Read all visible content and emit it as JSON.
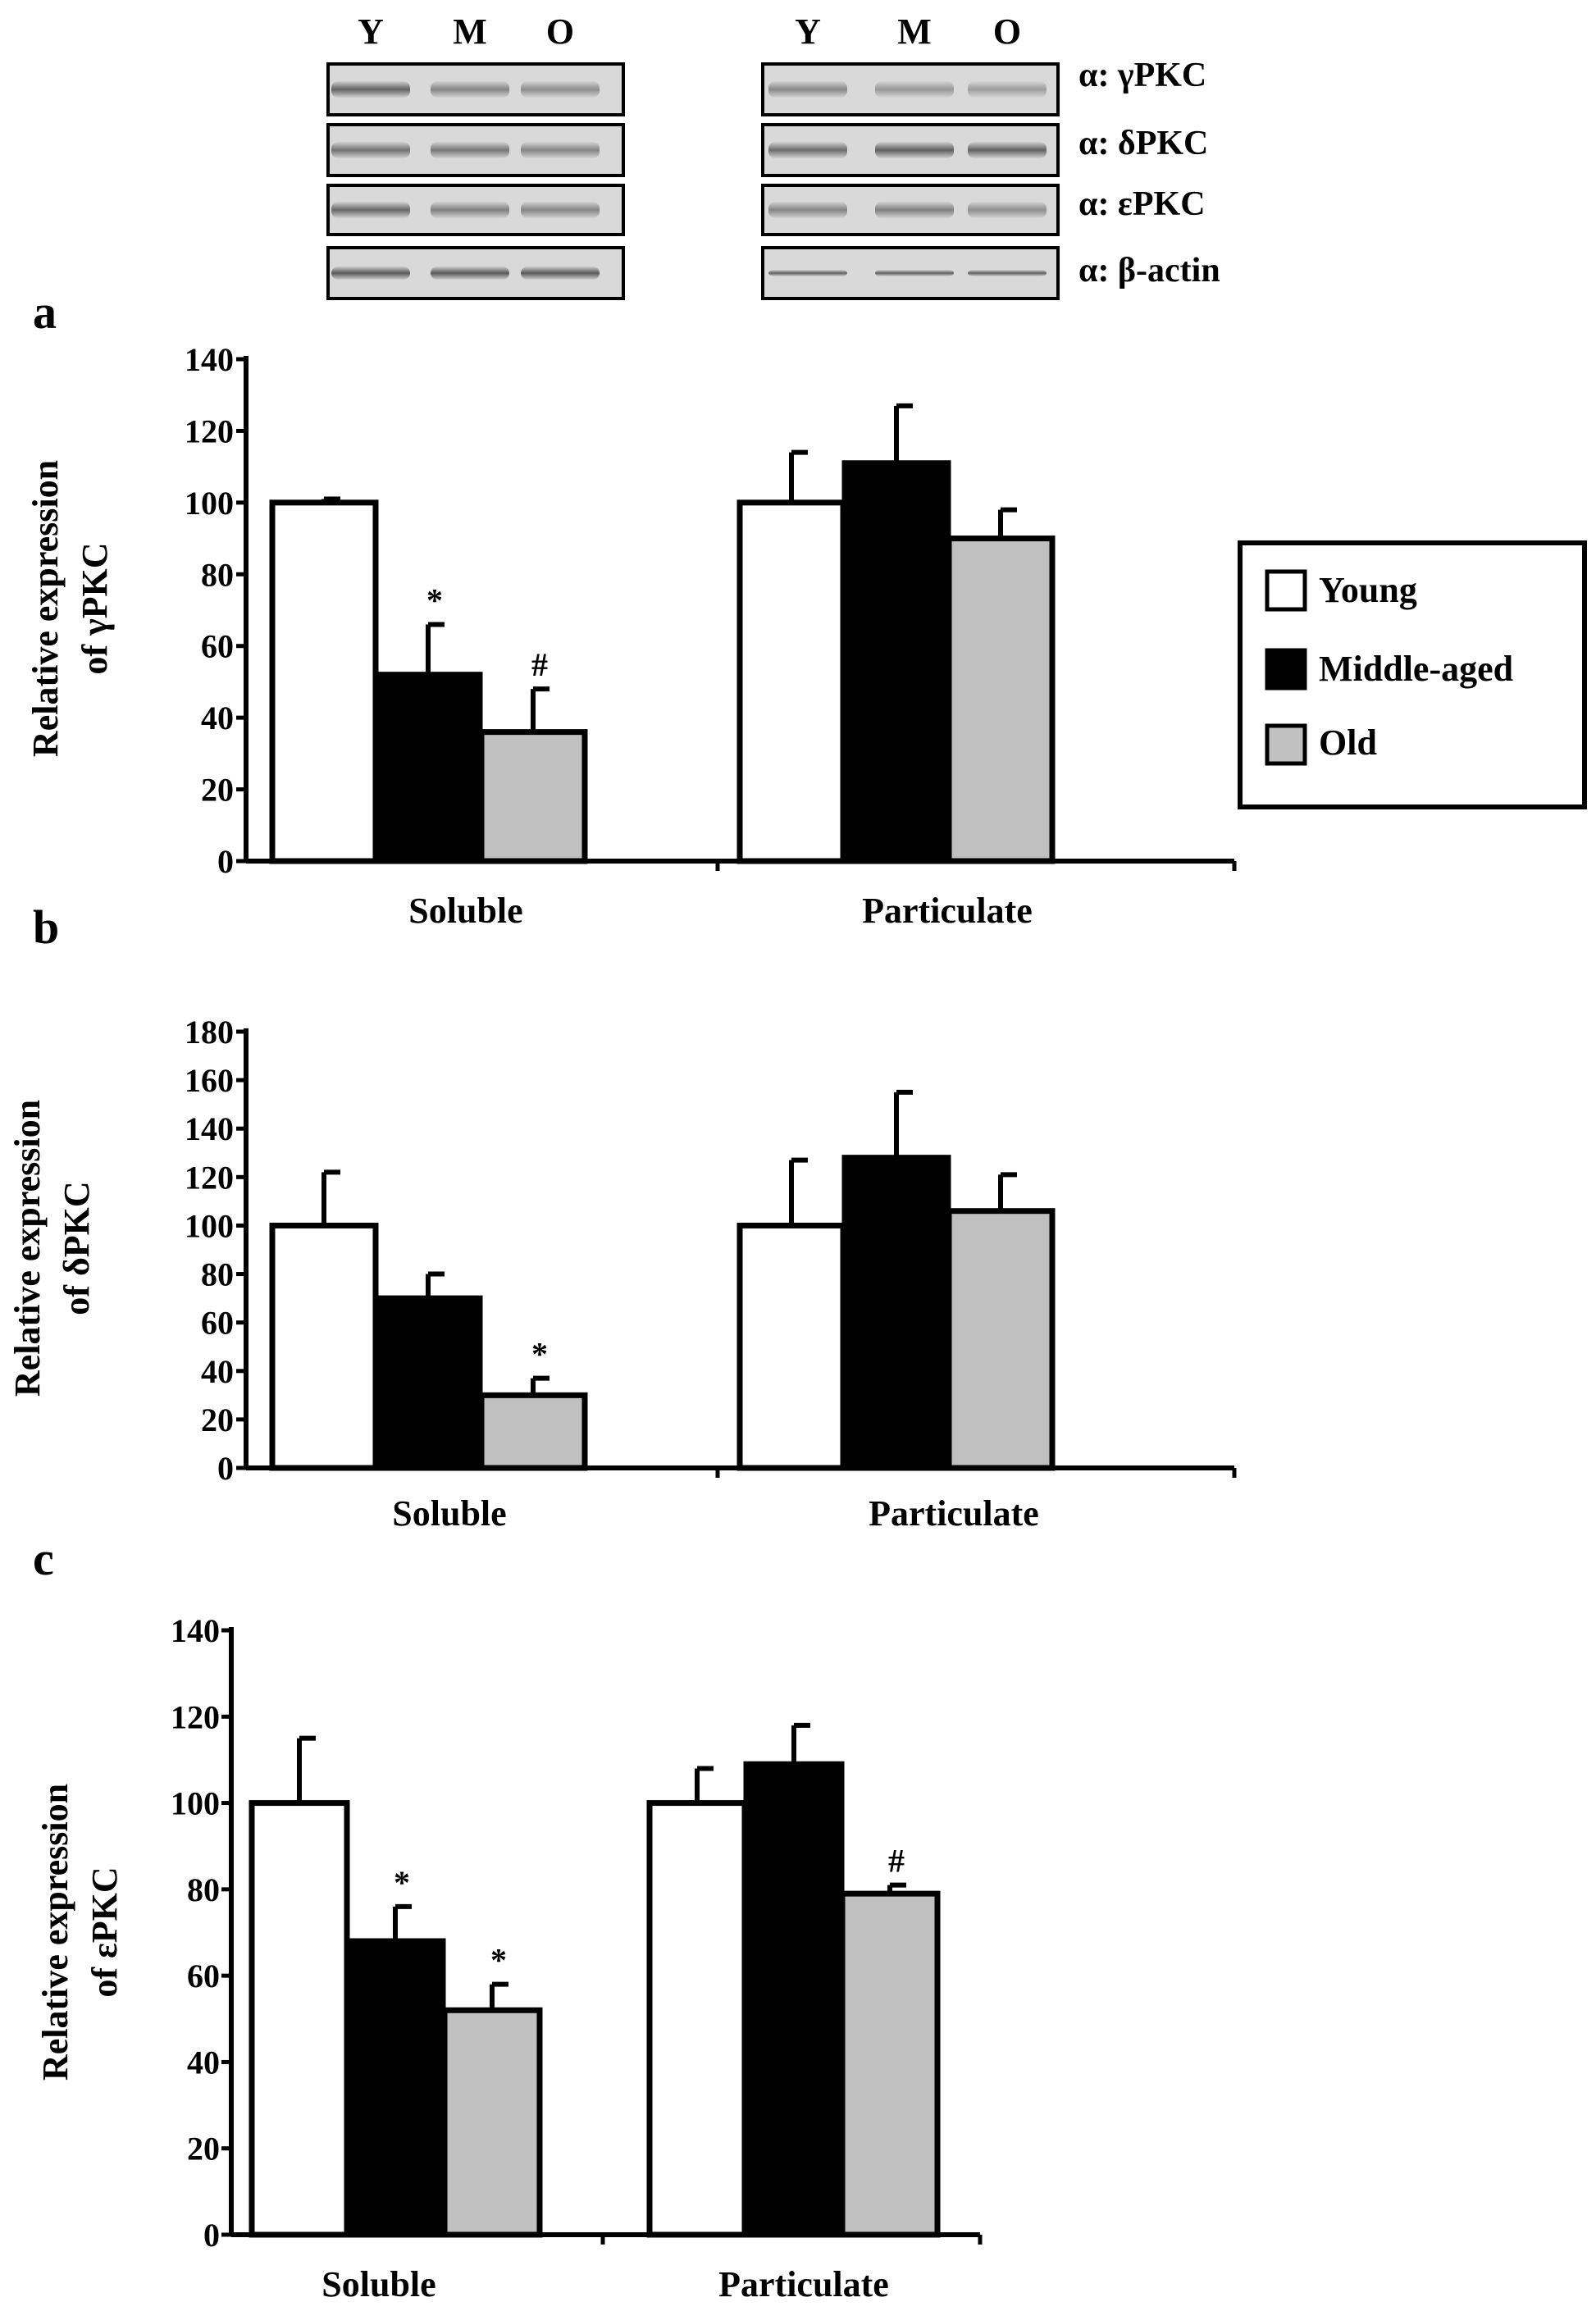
{
  "figure": {
    "blot": {
      "lane_labels": [
        "Y",
        "M",
        "O"
      ],
      "antibodies": [
        "α: γPKC",
        "α: δPKC",
        "α: εPKC",
        "α: β-actin"
      ]
    },
    "legend": {
      "entries": [
        "Young",
        "Middle-aged",
        "Old"
      ],
      "colors": [
        "#ffffff",
        "#000000",
        "#c0c0c0"
      ]
    },
    "colors": {
      "axis": "#000000",
      "young": "#ffffff",
      "middle": "#000000",
      "old": "#c0c0c0"
    }
  },
  "chart_data": [
    {
      "panel": "a",
      "type": "bar",
      "ylabel": [
        "Relative expression",
        "of γPKC"
      ],
      "categories": [
        "Soluble",
        "Particulate"
      ],
      "ylim": [
        0,
        140
      ],
      "yticks": [
        0,
        20,
        40,
        60,
        80,
        100,
        120,
        140
      ],
      "series": [
        {
          "name": "Young",
          "values": [
            100,
            100
          ],
          "errors": [
            1,
            14
          ],
          "annotations": [
            "",
            ""
          ]
        },
        {
          "name": "Middle-aged",
          "values": [
            52,
            111
          ],
          "errors": [
            14,
            16
          ],
          "annotations": [
            "*",
            ""
          ]
        },
        {
          "name": "Old",
          "values": [
            36,
            90
          ],
          "errors": [
            12,
            8
          ],
          "annotations": [
            "#",
            ""
          ]
        }
      ]
    },
    {
      "panel": "b",
      "type": "bar",
      "ylabel": [
        "Relative expression",
        "of δPKC"
      ],
      "categories": [
        "Soluble",
        "Particulate"
      ],
      "ylim": [
        0,
        180
      ],
      "yticks": [
        0,
        20,
        40,
        60,
        80,
        100,
        120,
        140,
        160,
        180
      ],
      "series": [
        {
          "name": "Young",
          "values": [
            100,
            100
          ],
          "errors": [
            22,
            27
          ],
          "annotations": [
            "",
            ""
          ]
        },
        {
          "name": "Middle-aged",
          "values": [
            70,
            128
          ],
          "errors": [
            10,
            27
          ],
          "annotations": [
            "",
            ""
          ]
        },
        {
          "name": "Old",
          "values": [
            30,
            106
          ],
          "errors": [
            7,
            15
          ],
          "annotations": [
            "*",
            ""
          ]
        }
      ]
    },
    {
      "panel": "c",
      "type": "bar",
      "ylabel": [
        "Relative expression",
        "of εPKC"
      ],
      "categories": [
        "Soluble",
        "Particulate"
      ],
      "ylim": [
        0,
        140
      ],
      "yticks": [
        0,
        20,
        40,
        60,
        80,
        100,
        120,
        140
      ],
      "series": [
        {
          "name": "Young",
          "values": [
            100,
            100
          ],
          "errors": [
            15,
            8
          ],
          "annotations": [
            "",
            ""
          ]
        },
        {
          "name": "Middle-aged",
          "values": [
            68,
            109
          ],
          "errors": [
            8,
            9
          ],
          "annotations": [
            "*",
            ""
          ]
        },
        {
          "name": "Old",
          "values": [
            52,
            79
          ],
          "errors": [
            6,
            2
          ],
          "annotations": [
            "*",
            "#"
          ]
        }
      ]
    }
  ]
}
